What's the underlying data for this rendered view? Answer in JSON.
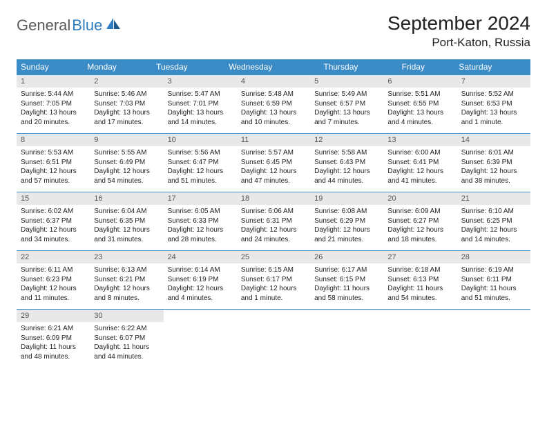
{
  "brand": {
    "name1": "General",
    "name2": "Blue"
  },
  "title": "September 2024",
  "location": "Port-Katon, Russia",
  "colors": {
    "header_bg": "#3b8bc6",
    "header_text": "#ffffff",
    "daynum_bg": "#e8e8e8",
    "daynum_text": "#555555",
    "body_text": "#222222",
    "rule": "#3b8bc6",
    "logo_gray": "#5a5a5a",
    "logo_blue": "#2e7cc0"
  },
  "day_names": [
    "Sunday",
    "Monday",
    "Tuesday",
    "Wednesday",
    "Thursday",
    "Friday",
    "Saturday"
  ],
  "weeks": [
    [
      {
        "n": "1",
        "sr": "Sunrise: 5:44 AM",
        "ss": "Sunset: 7:05 PM",
        "dl1": "Daylight: 13 hours",
        "dl2": "and 20 minutes."
      },
      {
        "n": "2",
        "sr": "Sunrise: 5:46 AM",
        "ss": "Sunset: 7:03 PM",
        "dl1": "Daylight: 13 hours",
        "dl2": "and 17 minutes."
      },
      {
        "n": "3",
        "sr": "Sunrise: 5:47 AM",
        "ss": "Sunset: 7:01 PM",
        "dl1": "Daylight: 13 hours",
        "dl2": "and 14 minutes."
      },
      {
        "n": "4",
        "sr": "Sunrise: 5:48 AM",
        "ss": "Sunset: 6:59 PM",
        "dl1": "Daylight: 13 hours",
        "dl2": "and 10 minutes."
      },
      {
        "n": "5",
        "sr": "Sunrise: 5:49 AM",
        "ss": "Sunset: 6:57 PM",
        "dl1": "Daylight: 13 hours",
        "dl2": "and 7 minutes."
      },
      {
        "n": "6",
        "sr": "Sunrise: 5:51 AM",
        "ss": "Sunset: 6:55 PM",
        "dl1": "Daylight: 13 hours",
        "dl2": "and 4 minutes."
      },
      {
        "n": "7",
        "sr": "Sunrise: 5:52 AM",
        "ss": "Sunset: 6:53 PM",
        "dl1": "Daylight: 13 hours",
        "dl2": "and 1 minute."
      }
    ],
    [
      {
        "n": "8",
        "sr": "Sunrise: 5:53 AM",
        "ss": "Sunset: 6:51 PM",
        "dl1": "Daylight: 12 hours",
        "dl2": "and 57 minutes."
      },
      {
        "n": "9",
        "sr": "Sunrise: 5:55 AM",
        "ss": "Sunset: 6:49 PM",
        "dl1": "Daylight: 12 hours",
        "dl2": "and 54 minutes."
      },
      {
        "n": "10",
        "sr": "Sunrise: 5:56 AM",
        "ss": "Sunset: 6:47 PM",
        "dl1": "Daylight: 12 hours",
        "dl2": "and 51 minutes."
      },
      {
        "n": "11",
        "sr": "Sunrise: 5:57 AM",
        "ss": "Sunset: 6:45 PM",
        "dl1": "Daylight: 12 hours",
        "dl2": "and 47 minutes."
      },
      {
        "n": "12",
        "sr": "Sunrise: 5:58 AM",
        "ss": "Sunset: 6:43 PM",
        "dl1": "Daylight: 12 hours",
        "dl2": "and 44 minutes."
      },
      {
        "n": "13",
        "sr": "Sunrise: 6:00 AM",
        "ss": "Sunset: 6:41 PM",
        "dl1": "Daylight: 12 hours",
        "dl2": "and 41 minutes."
      },
      {
        "n": "14",
        "sr": "Sunrise: 6:01 AM",
        "ss": "Sunset: 6:39 PM",
        "dl1": "Daylight: 12 hours",
        "dl2": "and 38 minutes."
      }
    ],
    [
      {
        "n": "15",
        "sr": "Sunrise: 6:02 AM",
        "ss": "Sunset: 6:37 PM",
        "dl1": "Daylight: 12 hours",
        "dl2": "and 34 minutes."
      },
      {
        "n": "16",
        "sr": "Sunrise: 6:04 AM",
        "ss": "Sunset: 6:35 PM",
        "dl1": "Daylight: 12 hours",
        "dl2": "and 31 minutes."
      },
      {
        "n": "17",
        "sr": "Sunrise: 6:05 AM",
        "ss": "Sunset: 6:33 PM",
        "dl1": "Daylight: 12 hours",
        "dl2": "and 28 minutes."
      },
      {
        "n": "18",
        "sr": "Sunrise: 6:06 AM",
        "ss": "Sunset: 6:31 PM",
        "dl1": "Daylight: 12 hours",
        "dl2": "and 24 minutes."
      },
      {
        "n": "19",
        "sr": "Sunrise: 6:08 AM",
        "ss": "Sunset: 6:29 PM",
        "dl1": "Daylight: 12 hours",
        "dl2": "and 21 minutes."
      },
      {
        "n": "20",
        "sr": "Sunrise: 6:09 AM",
        "ss": "Sunset: 6:27 PM",
        "dl1": "Daylight: 12 hours",
        "dl2": "and 18 minutes."
      },
      {
        "n": "21",
        "sr": "Sunrise: 6:10 AM",
        "ss": "Sunset: 6:25 PM",
        "dl1": "Daylight: 12 hours",
        "dl2": "and 14 minutes."
      }
    ],
    [
      {
        "n": "22",
        "sr": "Sunrise: 6:11 AM",
        "ss": "Sunset: 6:23 PM",
        "dl1": "Daylight: 12 hours",
        "dl2": "and 11 minutes."
      },
      {
        "n": "23",
        "sr": "Sunrise: 6:13 AM",
        "ss": "Sunset: 6:21 PM",
        "dl1": "Daylight: 12 hours",
        "dl2": "and 8 minutes."
      },
      {
        "n": "24",
        "sr": "Sunrise: 6:14 AM",
        "ss": "Sunset: 6:19 PM",
        "dl1": "Daylight: 12 hours",
        "dl2": "and 4 minutes."
      },
      {
        "n": "25",
        "sr": "Sunrise: 6:15 AM",
        "ss": "Sunset: 6:17 PM",
        "dl1": "Daylight: 12 hours",
        "dl2": "and 1 minute."
      },
      {
        "n": "26",
        "sr": "Sunrise: 6:17 AM",
        "ss": "Sunset: 6:15 PM",
        "dl1": "Daylight: 11 hours",
        "dl2": "and 58 minutes."
      },
      {
        "n": "27",
        "sr": "Sunrise: 6:18 AM",
        "ss": "Sunset: 6:13 PM",
        "dl1": "Daylight: 11 hours",
        "dl2": "and 54 minutes."
      },
      {
        "n": "28",
        "sr": "Sunrise: 6:19 AM",
        "ss": "Sunset: 6:11 PM",
        "dl1": "Daylight: 11 hours",
        "dl2": "and 51 minutes."
      }
    ],
    [
      {
        "n": "29",
        "sr": "Sunrise: 6:21 AM",
        "ss": "Sunset: 6:09 PM",
        "dl1": "Daylight: 11 hours",
        "dl2": "and 48 minutes."
      },
      {
        "n": "30",
        "sr": "Sunrise: 6:22 AM",
        "ss": "Sunset: 6:07 PM",
        "dl1": "Daylight: 11 hours",
        "dl2": "and 44 minutes."
      },
      {
        "empty": true,
        "n": "",
        "sr": "",
        "ss": "",
        "dl1": "",
        "dl2": ""
      },
      {
        "empty": true,
        "n": "",
        "sr": "",
        "ss": "",
        "dl1": "",
        "dl2": ""
      },
      {
        "empty": true,
        "n": "",
        "sr": "",
        "ss": "",
        "dl1": "",
        "dl2": ""
      },
      {
        "empty": true,
        "n": "",
        "sr": "",
        "ss": "",
        "dl1": "",
        "dl2": ""
      },
      {
        "empty": true,
        "n": "",
        "sr": "",
        "ss": "",
        "dl1": "",
        "dl2": ""
      }
    ]
  ]
}
